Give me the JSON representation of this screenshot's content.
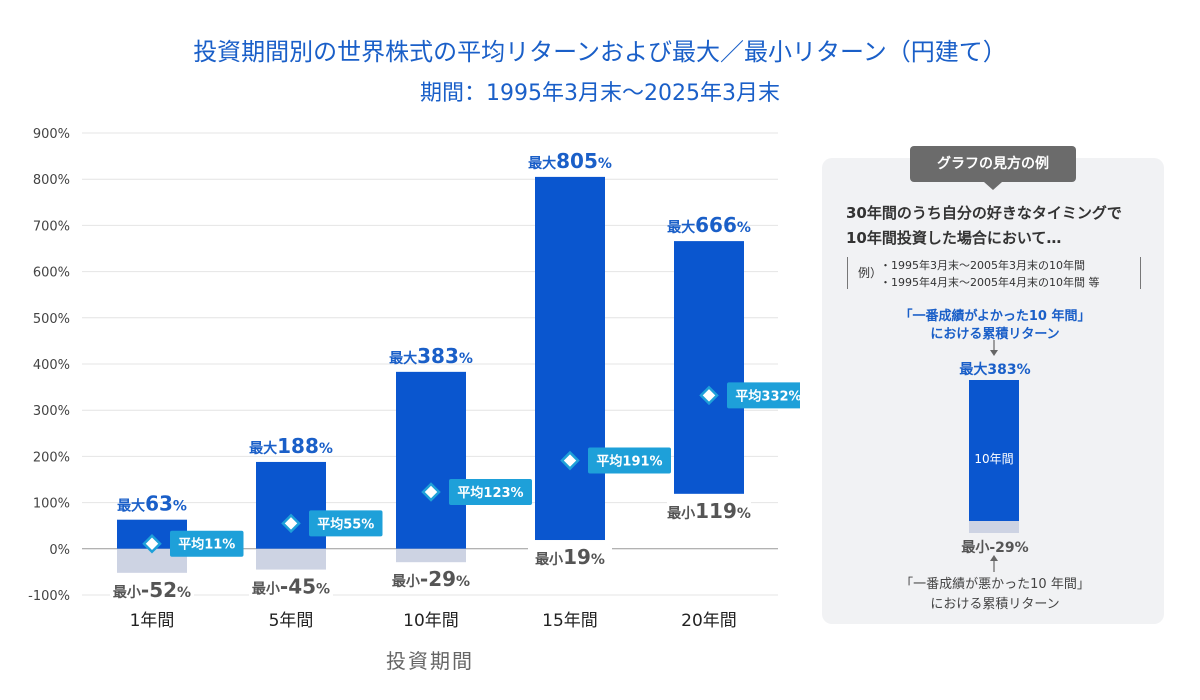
{
  "title": "投資期間別の世界株式の平均リターンおよび最大／最小リターン（円建て）",
  "subtitle": "期間：1995年3月末〜2025年3月末",
  "chart_data": {
    "type": "floating-bar",
    "title": "投資期間別の世界株式の平均リターンおよび最大／最小リターン（円建て）",
    "subtitle": "期間：1995年3月末〜2025年3月末",
    "xlabel": "投資期間",
    "ylabel": "",
    "ylim": [
      -100,
      900
    ],
    "yticks": [
      -100,
      0,
      100,
      200,
      300,
      400,
      500,
      600,
      700,
      800,
      900
    ],
    "ytick_labels": [
      "-100%",
      "0%",
      "100%",
      "200%",
      "300%",
      "400%",
      "500%",
      "600%",
      "700%",
      "800%",
      "900%"
    ],
    "categories": [
      "1年間",
      "5年間",
      "10年間",
      "15年間",
      "20年間"
    ],
    "series": [
      {
        "name": "最大",
        "values": [
          63,
          188,
          383,
          805,
          666
        ]
      },
      {
        "name": "最小",
        "values": [
          -52,
          -45,
          -29,
          19,
          119
        ]
      },
      {
        "name": "平均",
        "values": [
          11,
          55,
          123,
          191,
          332
        ]
      }
    ],
    "max_label": "最大",
    "min_label": "最小",
    "avg_label": "平均",
    "unit": "%",
    "colors": {
      "positive": "#0a56cf",
      "negative": "#cdd3e3",
      "avg_badge": "#1ea0d9",
      "max_text": "#1a5fc8",
      "min_text": "#555555"
    }
  },
  "panel": {
    "tag": "グラフの見方の例",
    "intro_line1": "30年間のうち自分の好きなタイミングで",
    "intro_line2": "10年間投資した場合において…",
    "example_label": "例）",
    "example1": "・1995年3月末〜2005年3月末の10年間",
    "example2": "・1995年4月末〜2005年4月末の10年間 等",
    "best_line1": "「一番成績がよかった10 年間」",
    "best_line2": "における累積リターン",
    "max_text": "最大383%",
    "bar_label": "10年間",
    "min_text": "最小-29%",
    "worst_line1": "「一番成績が悪かった10 年間」",
    "worst_line2": "における累積リターン"
  }
}
